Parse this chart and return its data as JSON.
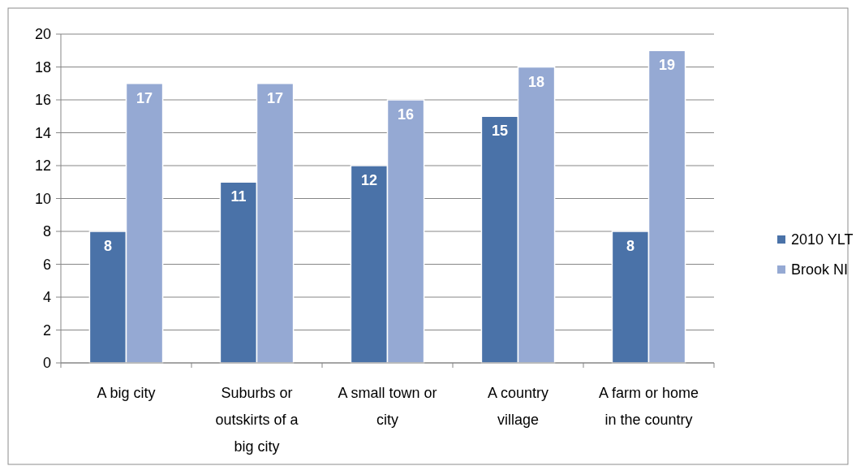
{
  "chart_data": {
    "type": "bar",
    "categories": [
      "A big city",
      "Suburbs or outskirts of a big city",
      "A small town or city",
      "A country village",
      "A farm or home in the country"
    ],
    "series": [
      {
        "name": "2010 YLT",
        "color": "#4a72a8",
        "values": [
          8,
          11,
          12,
          15,
          8
        ]
      },
      {
        "name": "Brook NI",
        "color": "#95a9d3",
        "values": [
          17,
          17,
          16,
          18,
          19
        ]
      }
    ],
    "ylim": [
      0,
      20
    ],
    "yticks": [
      0,
      2,
      4,
      6,
      8,
      10,
      12,
      14,
      16,
      18,
      20
    ],
    "grid": "y",
    "legend": "right",
    "data_labels": true
  }
}
